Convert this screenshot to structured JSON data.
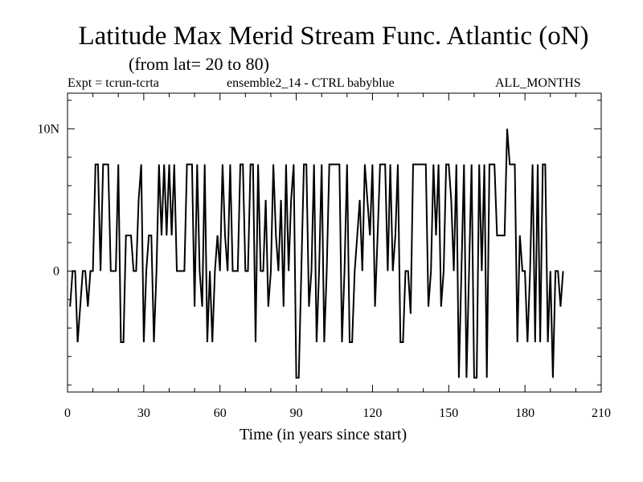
{
  "header": {
    "title": "Latitude Max Merid Stream Func. Atlantic (oN)",
    "subtitle": "(from lat= 20 to 80)",
    "expt_label": "Expt = tcrun-tcrta",
    "ensemble_label": "ensemble2_14 - CTRL babyblue",
    "months_label": "ALL_MONTHS"
  },
  "chart_data": {
    "type": "line",
    "title": "Latitude Max Merid Stream Func. Atlantic (oN)",
    "subtitle": "(from lat= 20 to 80)",
    "xlabel": "Time (in years since start)",
    "ylabel": "",
    "xlim": [
      0,
      210
    ],
    "ylim": [
      -8.5,
      12.5
    ],
    "x_ticks": [
      0,
      30,
      60,
      90,
      120,
      150,
      180,
      210
    ],
    "x_tick_labels": [
      "0",
      "30",
      "60",
      "90",
      "120",
      "150",
      "180",
      "210"
    ],
    "y_ticks": [
      0,
      10
    ],
    "y_tick_labels": [
      "0",
      "10N"
    ],
    "grid": false,
    "series": [
      {
        "color": "#000000",
        "values": [
          -2.5,
          0,
          0,
          -5,
          -2.5,
          0,
          0,
          -2.5,
          0,
          0,
          7.5,
          7.5,
          0,
          7.5,
          7.5,
          7.5,
          0,
          0,
          0,
          7.5,
          -5,
          -5,
          2.5,
          2.5,
          2.5,
          0,
          0,
          5,
          7.5,
          -5,
          0,
          2.5,
          2.5,
          -5,
          0,
          7.5,
          2.5,
          7.5,
          2.5,
          7.5,
          2.5,
          7.5,
          0,
          0,
          0,
          0,
          7.5,
          7.5,
          7.5,
          -2.5,
          7.5,
          0,
          -2.5,
          7.5,
          -5,
          0,
          -5,
          0,
          2.5,
          0,
          7.5,
          2.5,
          0,
          7.5,
          0,
          0,
          0,
          7.5,
          7.5,
          0,
          0,
          7.5,
          7.5,
          -5,
          7.5,
          0,
          0,
          5,
          -2.5,
          0,
          7.5,
          2.5,
          0,
          5,
          -2.5,
          7.5,
          0,
          5,
          7.5,
          -7.5,
          -7.5,
          0,
          7.5,
          7.5,
          -2.5,
          0,
          7.5,
          -5,
          0,
          7.5,
          -5,
          0,
          7.5,
          7.5,
          7.5,
          7.5,
          7.5,
          -5,
          0,
          7.5,
          -5,
          -5,
          0,
          2.5,
          5,
          0,
          7.5,
          5,
          2.5,
          7.5,
          -2.5,
          2.5,
          7.5,
          7.5,
          7.5,
          0,
          7.5,
          0,
          2.5,
          7.5,
          -5,
          -5,
          0,
          0,
          -3,
          7.5,
          7.5,
          7.5,
          7.5,
          7.5,
          7.5,
          -2.5,
          0,
          7.5,
          2.5,
          7.5,
          -2.5,
          0,
          7.5,
          7.5,
          5,
          0,
          7.5,
          -7.5,
          0,
          7.5,
          -7.5,
          0,
          7.5,
          -7.5,
          -7.5,
          7.5,
          0,
          7.5,
          -7.5,
          7.5,
          7.5,
          7.5,
          2.5,
          2.5,
          2.5,
          2.5,
          10,
          7.5,
          7.5,
          7.5,
          -5,
          2.5,
          0,
          0,
          -5,
          0,
          7.5,
          -5,
          7.5,
          -5,
          7.5,
          7.5,
          -5,
          0,
          -7.5,
          0,
          0,
          -2.5,
          0
        ]
      }
    ]
  }
}
